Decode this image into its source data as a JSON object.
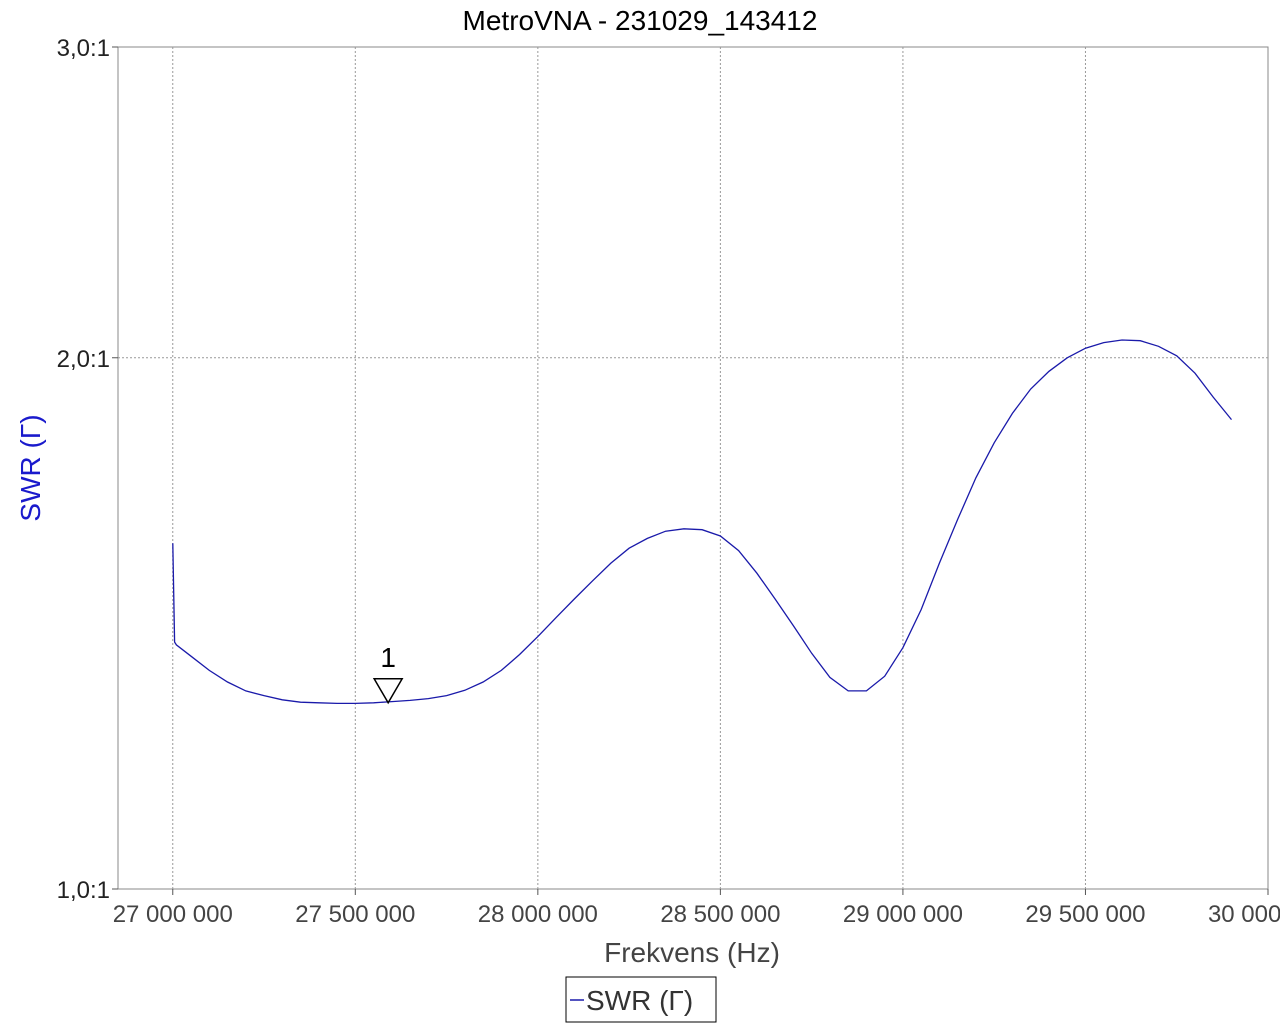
{
  "chart_data": {
    "type": "line",
    "title": "MetroVNA - 231029_143412",
    "xlabel": "Frekvens (Hz)",
    "ylabel": "SWR  (Γ)",
    "xlim": [
      26850000,
      30000000
    ],
    "ylim": [
      1.0,
      3.0
    ],
    "y_scale": "log",
    "x_ticks": [
      {
        "value": 27000000,
        "label": "27 000 000"
      },
      {
        "value": 27500000,
        "label": "27 500 000"
      },
      {
        "value": 28000000,
        "label": "28 000 000"
      },
      {
        "value": 28500000,
        "label": "28 500 000"
      },
      {
        "value": 29000000,
        "label": "29 000 000"
      },
      {
        "value": 29500000,
        "label": "29 500 000"
      },
      {
        "value": 30000000,
        "label": "30 000 000"
      }
    ],
    "y_ticks": [
      {
        "value": 1.0,
        "label": "1,0:1"
      },
      {
        "value": 2.0,
        "label": "2,0:1"
      },
      {
        "value": 3.0,
        "label": "3,0:1"
      }
    ],
    "grid": true,
    "legend_position": "bottom-center",
    "series": [
      {
        "name": "SWR  (Γ)",
        "color": "#1a1aaa",
        "x": [
          27000000,
          27005000,
          27010000,
          27050000,
          27100000,
          27150000,
          27200000,
          27250000,
          27300000,
          27350000,
          27400000,
          27450000,
          27500000,
          27550000,
          27600000,
          27650000,
          27700000,
          27750000,
          27800000,
          27850000,
          27900000,
          27950000,
          28000000,
          28050000,
          28100000,
          28150000,
          28200000,
          28250000,
          28300000,
          28350000,
          28400000,
          28450000,
          28500000,
          28550000,
          28600000,
          28650000,
          28700000,
          28750000,
          28800000,
          28850000,
          28900000,
          28950000,
          29000000,
          29050000,
          29100000,
          29150000,
          29200000,
          29250000,
          29300000,
          29350000,
          29400000,
          29450000,
          29500000,
          29550000,
          29600000,
          29650000,
          29700000,
          29750000,
          29800000,
          29850000,
          29900000
        ],
        "values": [
          1.57,
          1.38,
          1.375,
          1.355,
          1.33,
          1.31,
          1.295,
          1.287,
          1.28,
          1.276,
          1.275,
          1.274,
          1.274,
          1.275,
          1.277,
          1.279,
          1.282,
          1.287,
          1.296,
          1.31,
          1.33,
          1.358,
          1.39,
          1.425,
          1.46,
          1.495,
          1.53,
          1.56,
          1.58,
          1.595,
          1.6,
          1.598,
          1.585,
          1.555,
          1.51,
          1.46,
          1.41,
          1.36,
          1.318,
          1.295,
          1.295,
          1.32,
          1.37,
          1.44,
          1.53,
          1.62,
          1.71,
          1.79,
          1.86,
          1.92,
          1.965,
          2.0,
          2.025,
          2.04,
          2.047,
          2.045,
          2.03,
          2.005,
          1.96,
          1.9,
          1.845
        ]
      }
    ],
    "markers": [
      {
        "label": "1",
        "x": 27590000,
        "y": 1.275
      }
    ]
  },
  "legend": {
    "series_label": "SWR  (Γ)"
  }
}
